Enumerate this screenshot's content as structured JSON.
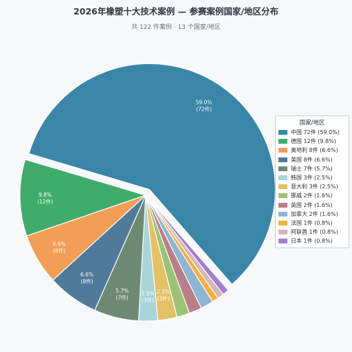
{
  "header": {
    "title": "2026年橡塑十大技术案例 — 参赛案例国家/地区分布",
    "subtitle": "共 122 件案例 · 13 个国家/地区"
  },
  "legend": {
    "title": "国家/地区",
    "entries": [
      "中国 72件 (59.0%)",
      "德国 12件 (9.8%)",
      "奥地利 8件 (6.6%)",
      "美国 8件 (6.6%)",
      "瑞士 7件 (5.7%)",
      "韩国 3件 (2.5%)",
      "意大利 3件 (2.5%)",
      "挪威 2件 (1.6%)",
      "英国 2件 (1.6%)",
      "加拿大 2件 (1.6%)",
      "法国 1件 (0.8%)",
      "阿联酋 1件 (0.8%)",
      "日本 1件 (0.8%)"
    ]
  },
  "chart_data": {
    "type": "pie",
    "title": "2026年橡塑十大技术案例 — 参赛案例国家/地区分布",
    "subtitle": "共 122 件案例 · 13 个国家/地区",
    "total": 122,
    "start_angle_deg": -49,
    "direction": "counterclockwise",
    "exploded": [
      "中国"
    ],
    "legend_position": "right",
    "slices": [
      {
        "name": "中国",
        "value": 72,
        "percent": 59.0,
        "color": "#3a86a8",
        "label": [
          "59.0%",
          "(72件)"
        ]
      },
      {
        "name": "德国",
        "value": 12,
        "percent": 9.8,
        "color": "#3fac6b",
        "label": [
          "9.8%",
          "(12件)"
        ]
      },
      {
        "name": "奥地利",
        "value": 8,
        "percent": 6.6,
        "color": "#f29e57",
        "label": [
          "6.6%",
          "(8件)"
        ]
      },
      {
        "name": "美国",
        "value": 8,
        "percent": 6.6,
        "color": "#4f7a9a",
        "label": [
          "6.6%",
          "(8件)"
        ]
      },
      {
        "name": "瑞士",
        "value": 7,
        "percent": 5.7,
        "color": "#6e8a74",
        "label": [
          "5.7%",
          "(7件)"
        ]
      },
      {
        "name": "韩国",
        "value": 3,
        "percent": 2.5,
        "color": "#a8d5d8",
        "label": [
          "2.5%",
          "(3件)"
        ]
      },
      {
        "name": "意大利",
        "value": 3,
        "percent": 2.5,
        "color": "#e4c067",
        "label": [
          "2.5%",
          "(3件)"
        ]
      },
      {
        "name": "挪威",
        "value": 2,
        "percent": 1.6,
        "color": "#9bc375",
        "label": null
      },
      {
        "name": "英国",
        "value": 2,
        "percent": 1.6,
        "color": "#b97f88",
        "label": null
      },
      {
        "name": "加拿大",
        "value": 2,
        "percent": 1.6,
        "color": "#8fb5d4",
        "label": null
      },
      {
        "name": "法国",
        "value": 1,
        "percent": 0.8,
        "color": "#f7b041",
        "label": null
      },
      {
        "name": "阿联酋",
        "value": 1,
        "percent": 0.8,
        "color": "#d6b7b5",
        "label": null
      },
      {
        "name": "日本",
        "value": 1,
        "percent": 0.8,
        "color": "#a07fcb",
        "label": null
      }
    ]
  }
}
